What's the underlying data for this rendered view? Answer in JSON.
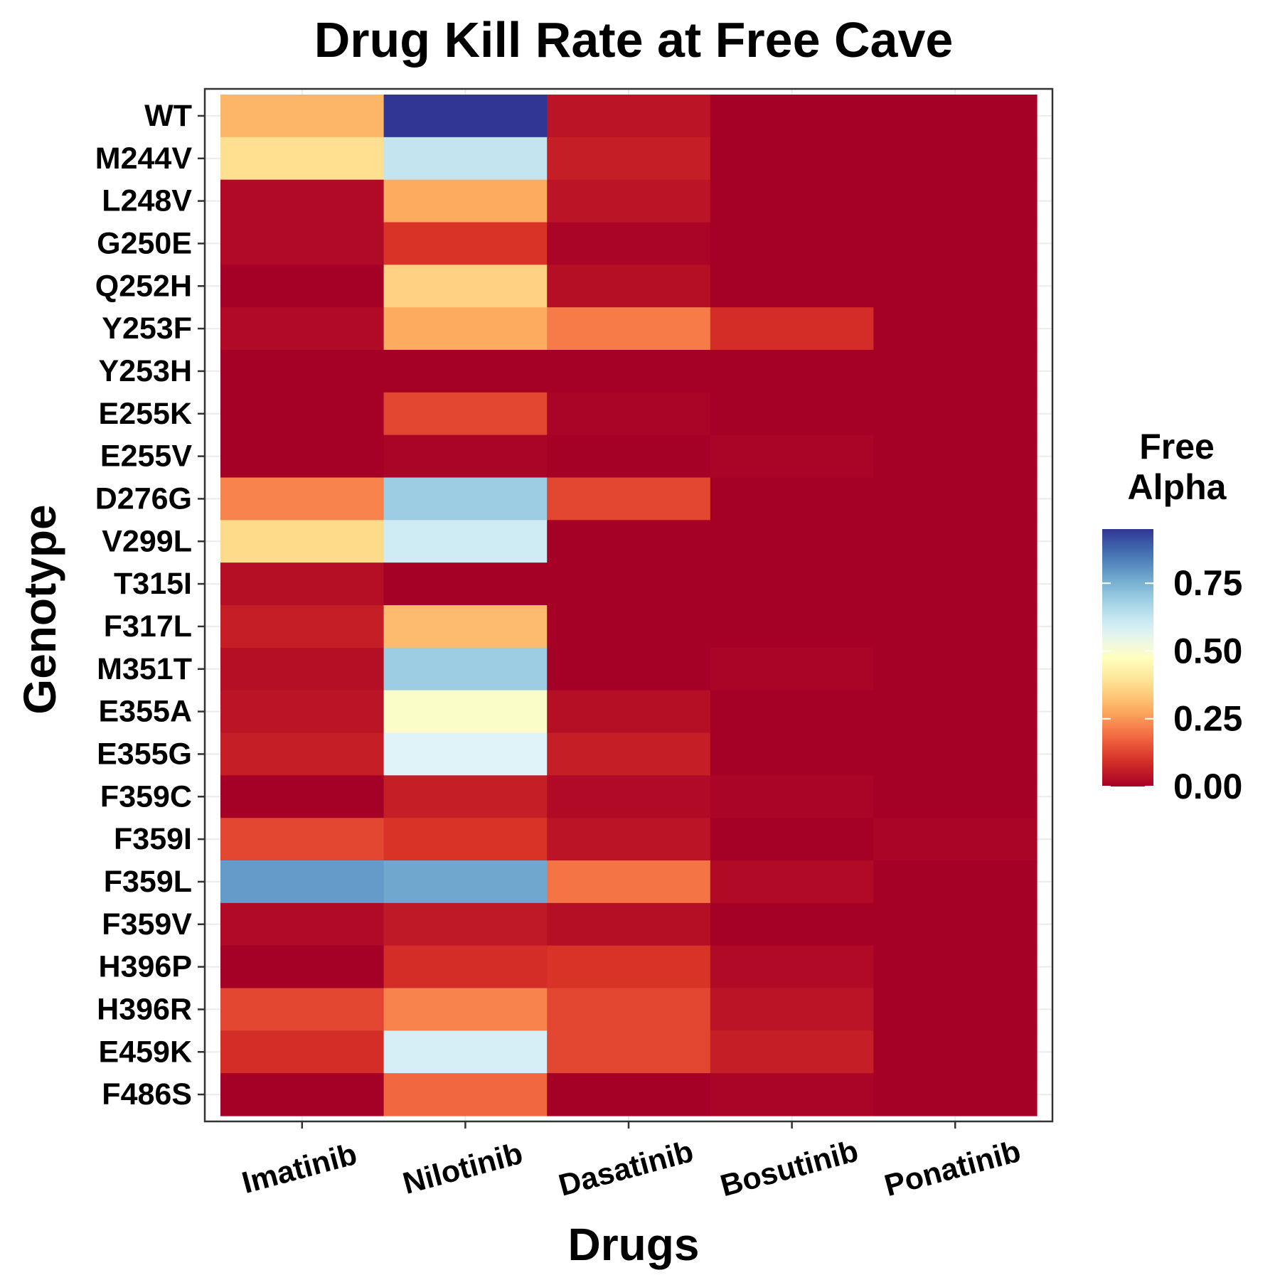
{
  "chart_data": {
    "type": "heatmap",
    "title": "Drug Kill Rate at Free Cave",
    "xlabel": "Drugs",
    "ylabel": "Genotype",
    "x_categories": [
      "Imatinib",
      "Nilotinib",
      "Dasatinib",
      "Bosutinib",
      "Ponatinib"
    ],
    "y_categories": [
      "WT",
      "M244V",
      "L248V",
      "G250E",
      "Q252H",
      "Y253F",
      "Y253H",
      "E255K",
      "E255V",
      "D276G",
      "V299L",
      "T315I",
      "F317L",
      "M351T",
      "E355A",
      "E355G",
      "F359C",
      "F359I",
      "F359L",
      "F359V",
      "H396P",
      "H396R",
      "E459K",
      "F486S"
    ],
    "values": [
      [
        0.3,
        0.95,
        0.04,
        0.0,
        0.0
      ],
      [
        0.38,
        0.62,
        0.06,
        0.0,
        0.0
      ],
      [
        0.02,
        0.28,
        0.04,
        0.0,
        0.0
      ],
      [
        0.02,
        0.1,
        0.01,
        0.0,
        0.0
      ],
      [
        0.0,
        0.35,
        0.03,
        0.0,
        0.0
      ],
      [
        0.02,
        0.28,
        0.21,
        0.09,
        0.0
      ],
      [
        0.0,
        0.0,
        0.0,
        0.0,
        0.0
      ],
      [
        0.0,
        0.13,
        0.01,
        0.0,
        0.0
      ],
      [
        0.0,
        0.01,
        0.0,
        0.01,
        0.0
      ],
      [
        0.22,
        0.69,
        0.13,
        0.0,
        0.0
      ],
      [
        0.37,
        0.6,
        0.0,
        0.0,
        0.0
      ],
      [
        0.03,
        0.0,
        0.0,
        0.0,
        0.0
      ],
      [
        0.06,
        0.31,
        0.0,
        0.0,
        0.0
      ],
      [
        0.03,
        0.69,
        0.0,
        0.01,
        0.0
      ],
      [
        0.04,
        0.49,
        0.03,
        0.0,
        0.0
      ],
      [
        0.06,
        0.57,
        0.06,
        0.0,
        0.0
      ],
      [
        0.0,
        0.06,
        0.02,
        0.01,
        0.0
      ],
      [
        0.13,
        0.1,
        0.04,
        0.0,
        0.01
      ],
      [
        0.79,
        0.77,
        0.2,
        0.02,
        0.0
      ],
      [
        0.02,
        0.05,
        0.03,
        0.0,
        0.0
      ],
      [
        0.0,
        0.09,
        0.1,
        0.02,
        0.0
      ],
      [
        0.13,
        0.22,
        0.13,
        0.04,
        0.0
      ],
      [
        0.09,
        0.59,
        0.13,
        0.06,
        0.0
      ],
      [
        0.0,
        0.18,
        0.0,
        0.01,
        0.0
      ]
    ],
    "legend": {
      "title_lines": [
        "Free",
        "Alpha"
      ],
      "ticks": [
        "0.00",
        "0.25",
        "0.50",
        "0.75"
      ],
      "tick_values": [
        0,
        0.25,
        0.5,
        0.75
      ],
      "range": [
        0,
        0.95
      ],
      "placement": "right"
    },
    "colorscale": [
      "#a50026",
      "#d73027",
      "#f46d43",
      "#fdae61",
      "#fee090",
      "#ffffbf",
      "#e0f3f8",
      "#abd9e9",
      "#74add1",
      "#4575b4",
      "#313695"
    ],
    "grid": true
  }
}
